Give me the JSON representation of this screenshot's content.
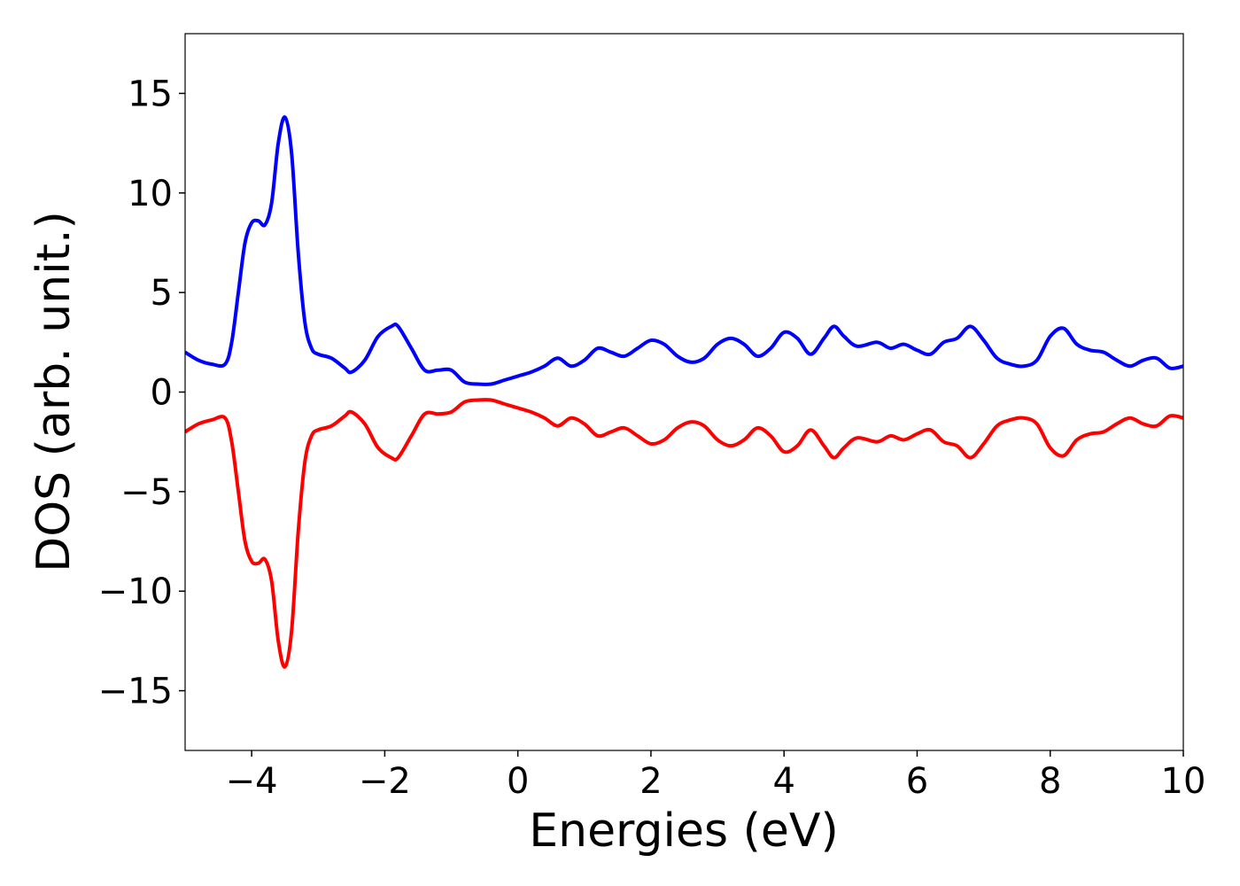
{
  "chart_data": {
    "type": "line",
    "x_label": "Energies (eV)",
    "y_label": "DOS (arb. unit.)",
    "x": [
      -5,
      -4.8,
      -4.6,
      -4.4,
      -4.3,
      -4.2,
      -4.1,
      -4.0,
      -3.9,
      -3.8,
      -3.7,
      -3.6,
      -3.5,
      -3.4,
      -3.3,
      -3.2,
      -3.1,
      -3.0,
      -2.8,
      -2.6,
      -2.5,
      -2.3,
      -2.1,
      -1.9,
      -1.8,
      -1.6,
      -1.4,
      -1.2,
      -1.0,
      -0.8,
      -0.6,
      -0.4,
      -0.2,
      0,
      0.2,
      0.4,
      0.6,
      0.8,
      1.0,
      1.2,
      1.4,
      1.6,
      1.8,
      2.0,
      2.2,
      2.4,
      2.6,
      2.8,
      3.0,
      3.2,
      3.4,
      3.6,
      3.8,
      4.0,
      4.2,
      4.4,
      4.6,
      4.75,
      4.9,
      5.1,
      5.4,
      5.6,
      5.8,
      6.0,
      6.2,
      6.4,
      6.6,
      6.8,
      7.0,
      7.2,
      7.4,
      7.6,
      7.8,
      8.0,
      8.2,
      8.4,
      8.6,
      8.8,
      9.0,
      9.2,
      9.4,
      9.6,
      9.8,
      10
    ],
    "series": [
      {
        "color": "#0000ff",
        "values": [
          2.0,
          1.6,
          1.4,
          1.4,
          2.5,
          5.0,
          7.5,
          8.5,
          8.6,
          8.4,
          9.5,
          12.5,
          13.8,
          12.0,
          7.0,
          3.5,
          2.2,
          1.9,
          1.7,
          1.2,
          1.0,
          1.6,
          2.8,
          3.3,
          3.3,
          2.2,
          1.1,
          1.1,
          1.1,
          0.5,
          0.4,
          0.4,
          0.6,
          0.8,
          1.0,
          1.3,
          1.7,
          1.3,
          1.6,
          2.2,
          2.0,
          1.8,
          2.2,
          2.6,
          2.4,
          1.8,
          1.5,
          1.7,
          2.4,
          2.7,
          2.4,
          1.8,
          2.2,
          3.0,
          2.7,
          1.9,
          2.7,
          3.3,
          2.8,
          2.3,
          2.5,
          2.2,
          2.4,
          2.1,
          1.9,
          2.5,
          2.7,
          3.3,
          2.6,
          1.7,
          1.4,
          1.3,
          1.6,
          2.8,
          3.2,
          2.4,
          2.1,
          2.0,
          1.6,
          1.3,
          1.6,
          1.7,
          1.2,
          1.3
        ]
      },
      {
        "color": "#ff0000",
        "values": [
          -2.0,
          -1.6,
          -1.4,
          -1.3,
          -2.5,
          -5.0,
          -7.5,
          -8.5,
          -8.6,
          -8.4,
          -9.5,
          -12.5,
          -13.8,
          -12.0,
          -7.0,
          -3.5,
          -2.2,
          -1.9,
          -1.7,
          -1.2,
          -1.0,
          -1.6,
          -2.8,
          -3.3,
          -3.3,
          -2.2,
          -1.1,
          -1.1,
          -1.0,
          -0.5,
          -0.4,
          -0.4,
          -0.6,
          -0.8,
          -1.0,
          -1.3,
          -1.7,
          -1.3,
          -1.6,
          -2.2,
          -2.0,
          -1.8,
          -2.2,
          -2.6,
          -2.4,
          -1.8,
          -1.5,
          -1.7,
          -2.4,
          -2.7,
          -2.4,
          -1.8,
          -2.2,
          -3.0,
          -2.7,
          -1.9,
          -2.7,
          -3.3,
          -2.8,
          -2.3,
          -2.5,
          -2.2,
          -2.4,
          -2.1,
          -1.9,
          -2.5,
          -2.7,
          -3.3,
          -2.6,
          -1.7,
          -1.4,
          -1.3,
          -1.6,
          -2.8,
          -3.2,
          -2.4,
          -2.1,
          -2.0,
          -1.6,
          -1.3,
          -1.6,
          -1.7,
          -1.2,
          -1.3
        ]
      }
    ],
    "xlim": [
      -5,
      10
    ],
    "xticks": [
      {
        "value": -4,
        "label": "−4"
      },
      {
        "value": -2,
        "label": "−2"
      },
      0,
      2,
      4,
      6,
      8,
      10
    ],
    "ylim": [
      -18,
      18
    ],
    "yticks": [
      {
        "value": -15,
        "label": "−15"
      },
      {
        "value": -10,
        "label": "−10"
      },
      {
        "value": -5,
        "label": "−5"
      },
      0,
      5,
      10,
      15
    ],
    "grid": false
  }
}
